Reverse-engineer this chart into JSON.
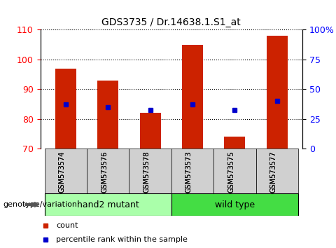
{
  "title": "GDS3735 / Dr.14638.1.S1_at",
  "categories": [
    "GSM573574",
    "GSM573576",
    "GSM573578",
    "GSM573573",
    "GSM573575",
    "GSM573577"
  ],
  "bar_values": [
    97,
    93,
    82,
    105,
    74,
    108
  ],
  "bar_bottom": 70,
  "percentile_left_values": [
    85,
    84,
    83,
    85,
    83,
    86
  ],
  "bar_color": "#cc2200",
  "marker_color": "#0000cc",
  "ylim_left": [
    70,
    110
  ],
  "ylim_right": [
    0,
    100
  ],
  "yticks_left": [
    70,
    80,
    90,
    100,
    110
  ],
  "yticks_right": [
    0,
    25,
    50,
    75,
    100
  ],
  "group1_label": "hand2 mutant",
  "group2_label": "wild type",
  "group1_indices": [
    0,
    1,
    2
  ],
  "group2_indices": [
    3,
    4,
    5
  ],
  "group_label_prefix": "genotype/variation",
  "group1_color": "#aaffaa",
  "group2_color": "#44dd44",
  "legend_count_label": "count",
  "legend_pct_label": "percentile rank within the sample"
}
